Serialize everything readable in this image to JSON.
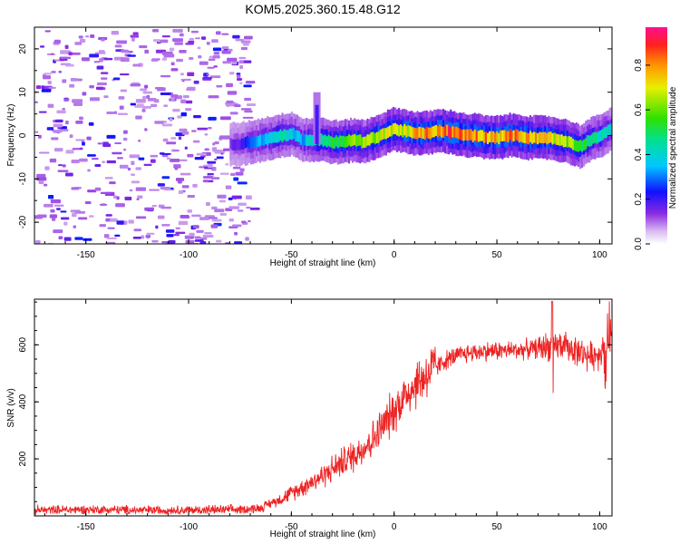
{
  "title": "KOM5.2025.360.15.48.G12",
  "chart_data": [
    {
      "type": "heatmap",
      "name": "spectrogram",
      "xlabel": "Height of straight line (km)",
      "ylabel": "Frequency (Hz)",
      "xlim": [
        -175,
        106
      ],
      "ylim": [
        -25,
        25
      ],
      "xticks": [
        -150,
        -100,
        -50,
        0,
        50,
        100
      ],
      "xtick_labels": [
        "-150",
        "-100",
        "-50",
        "0",
        "50",
        "100"
      ],
      "yticks": [
        -20,
        -10,
        0,
        10,
        20
      ],
      "ytick_labels": [
        "-20",
        "-10",
        "0",
        "10",
        "20"
      ],
      "colorbar": {
        "label": "Normalized spectral amplitude",
        "ticks": [
          0.0,
          0.2,
          0.4,
          0.6,
          0.8
        ],
        "tick_labels": [
          "0.0",
          "0.2",
          "0.4",
          "0.6",
          "0.8"
        ],
        "range": [
          0,
          0.97
        ]
      },
      "noise_region_x": [
        -175,
        -70
      ],
      "signal_track": {
        "x": [
          -80,
          -75,
          -70,
          -65,
          -60,
          -55,
          -50,
          -45,
          -40,
          -35,
          -30,
          -25,
          -20,
          -15,
          -10,
          -5,
          0,
          5,
          10,
          15,
          20,
          25,
          30,
          35,
          40,
          45,
          50,
          55,
          60,
          65,
          70,
          75,
          80,
          85,
          90,
          95,
          100,
          106
        ],
        "frequency": [
          -2,
          -2,
          -1.5,
          -1,
          -0.5,
          0,
          0.5,
          -1,
          -1,
          -1,
          -1.5,
          -1.5,
          -1,
          -1.5,
          -0.5,
          0.5,
          1.5,
          1,
          0.5,
          0.5,
          1,
          1,
          0.5,
          0,
          0,
          -0.5,
          -0.5,
          0,
          0,
          -0.5,
          -0.5,
          -0.5,
          -1,
          -1.5,
          -2.5,
          -1,
          0,
          1.5
        ],
        "amplitude": [
          0.15,
          0.2,
          0.3,
          0.35,
          0.4,
          0.45,
          0.4,
          0.35,
          0.45,
          0.5,
          0.55,
          0.6,
          0.62,
          0.65,
          0.68,
          0.7,
          0.72,
          0.75,
          0.78,
          0.82,
          0.85,
          0.9,
          0.88,
          0.86,
          0.85,
          0.83,
          0.82,
          0.85,
          0.83,
          0.8,
          0.78,
          0.75,
          0.7,
          0.65,
          0.55,
          0.5,
          0.45,
          0.4
        ]
      },
      "artifact_spike": {
        "x": -38,
        "frequency_range": [
          -2,
          10
        ]
      }
    },
    {
      "type": "line",
      "name": "snr",
      "xlabel": "Height of straight line (km)",
      "ylabel": "SNR (v/v)",
      "xlim": [
        -175,
        106
      ],
      "ylim": [
        0,
        760
      ],
      "xticks": [
        -150,
        -100,
        -50,
        0,
        50,
        100
      ],
      "xtick_labels": [
        "-150",
        "-100",
        "-50",
        "0",
        "50",
        "100"
      ],
      "yticks": [
        200,
        400,
        600
      ],
      "ytick_labels": [
        "200",
        "400",
        "600"
      ],
      "color": "#ee2222",
      "series": [
        {
          "name": "SNR",
          "x": [
            -175,
            -150,
            -125,
            -100,
            -75,
            -65,
            -60,
            -55,
            -50,
            -45,
            -40,
            -35,
            -30,
            -25,
            -20,
            -15,
            -10,
            -5,
            0,
            5,
            10,
            15,
            20,
            25,
            30,
            35,
            40,
            45,
            50,
            55,
            60,
            65,
            70,
            75,
            78,
            80,
            85,
            90,
            95,
            100,
            106
          ],
          "values": [
            20,
            22,
            20,
            20,
            22,
            28,
            45,
            60,
            80,
            100,
            120,
            140,
            165,
            190,
            210,
            240,
            270,
            320,
            370,
            420,
            460,
            490,
            520,
            545,
            560,
            570,
            575,
            578,
            580,
            580,
            582,
            585,
            588,
            595,
            590,
            600,
            590,
            575,
            560,
            570,
            620
          ]
        }
      ],
      "noise_amplitude": 15
    }
  ]
}
